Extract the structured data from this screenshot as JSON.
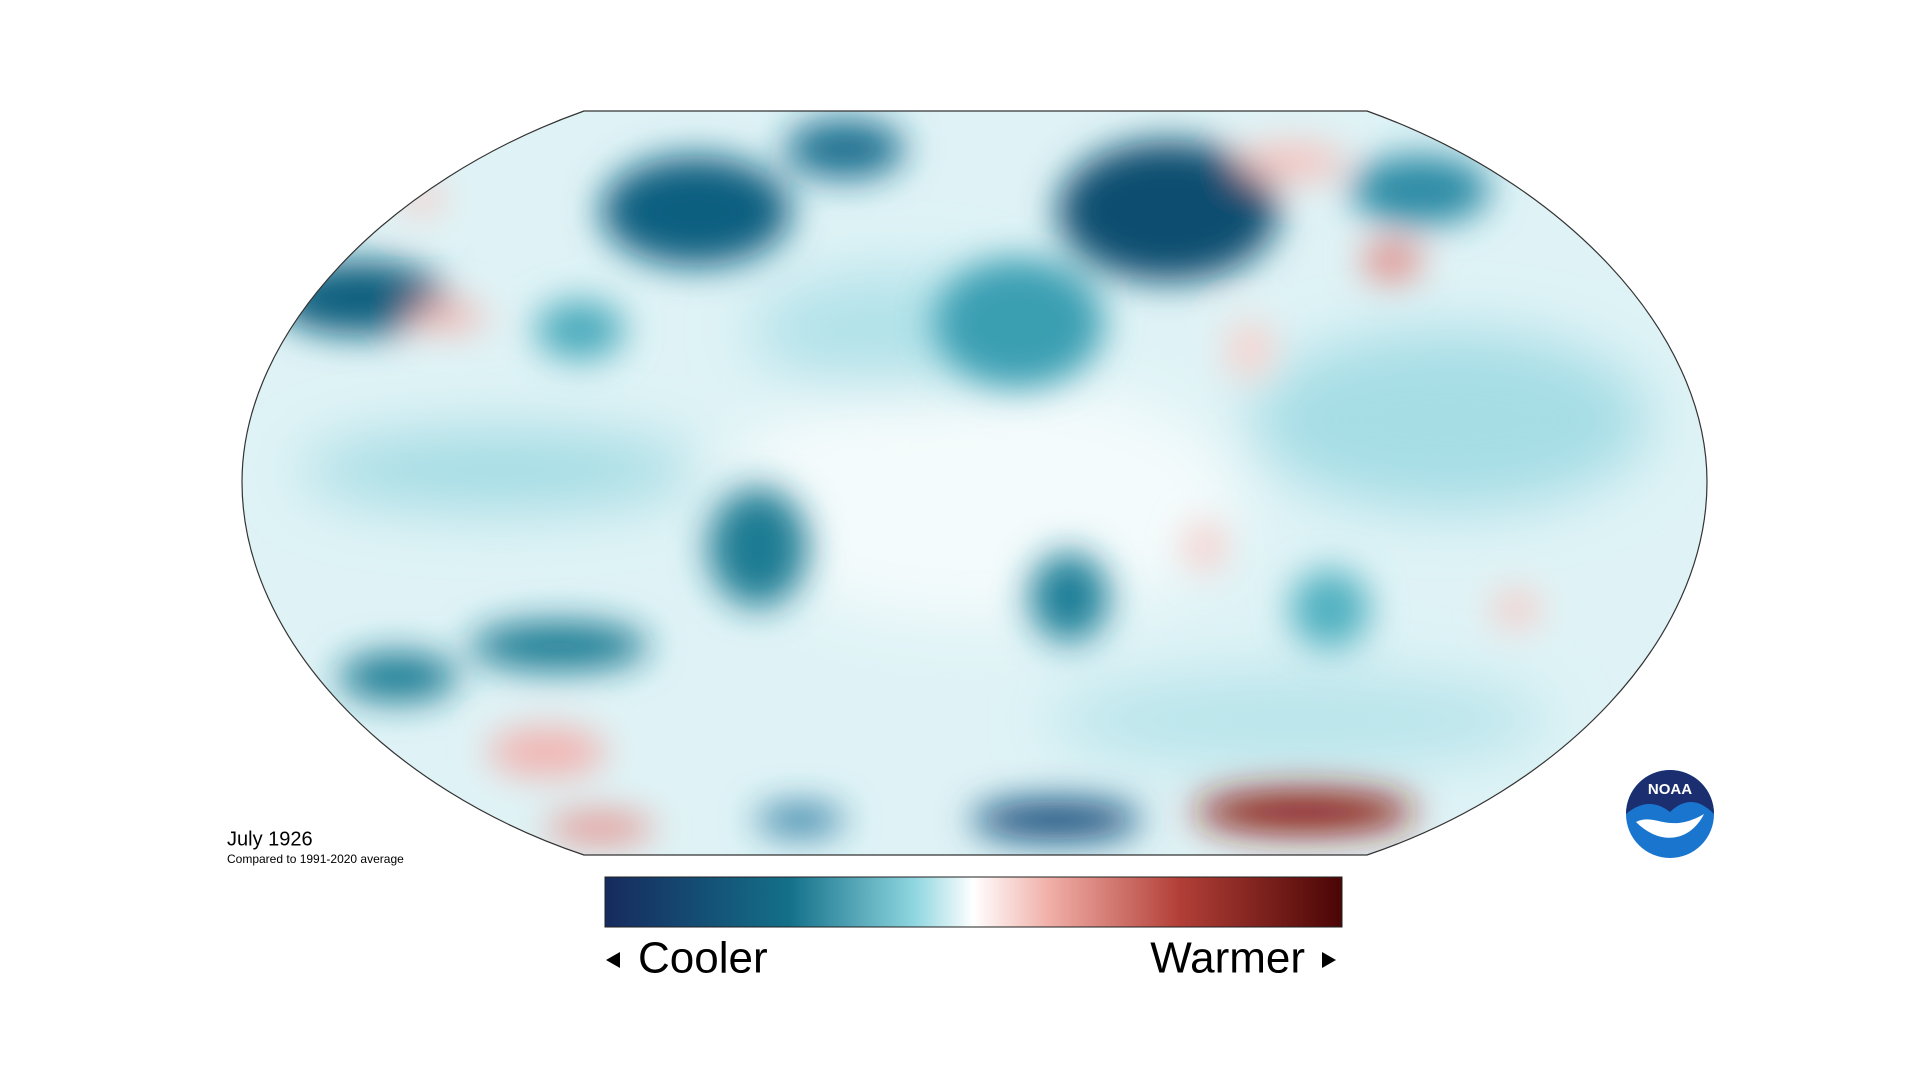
{
  "map": {
    "title": "July 1926",
    "subtitle": "Compared to 1991-2020 average",
    "legend": {
      "low_label": "Cooler",
      "high_label": "Warmer"
    },
    "logo": "NOAA"
  }
}
